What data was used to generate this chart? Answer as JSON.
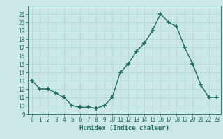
{
  "x": [
    0,
    1,
    2,
    3,
    4,
    5,
    6,
    7,
    8,
    9,
    10,
    11,
    12,
    13,
    14,
    15,
    16,
    17,
    18,
    19,
    20,
    21,
    22,
    23
  ],
  "y": [
    13,
    12,
    12,
    11.5,
    11,
    10,
    9.8,
    9.8,
    9.7,
    10,
    11,
    14,
    15,
    16.5,
    17.5,
    19,
    21,
    20,
    19.5,
    17,
    15,
    12.5,
    11,
    11
  ],
  "xlabel": "Humidex (Indice chaleur)",
  "line_color": "#1a6b5a",
  "marker_color": "#1a6b5a",
  "bg_color": "#cce8e5",
  "grid_color": "#b0d4d0",
  "text_color": "#1a6b5a",
  "ylim": [
    9,
    22
  ],
  "xlim": [
    -0.5,
    23.5
  ],
  "yticks": [
    9,
    10,
    11,
    12,
    13,
    14,
    15,
    16,
    17,
    18,
    19,
    20,
    21
  ],
  "xticks": [
    0,
    1,
    2,
    3,
    4,
    5,
    6,
    7,
    8,
    9,
    10,
    11,
    12,
    13,
    14,
    15,
    16,
    17,
    18,
    19,
    20,
    21,
    22,
    23
  ]
}
